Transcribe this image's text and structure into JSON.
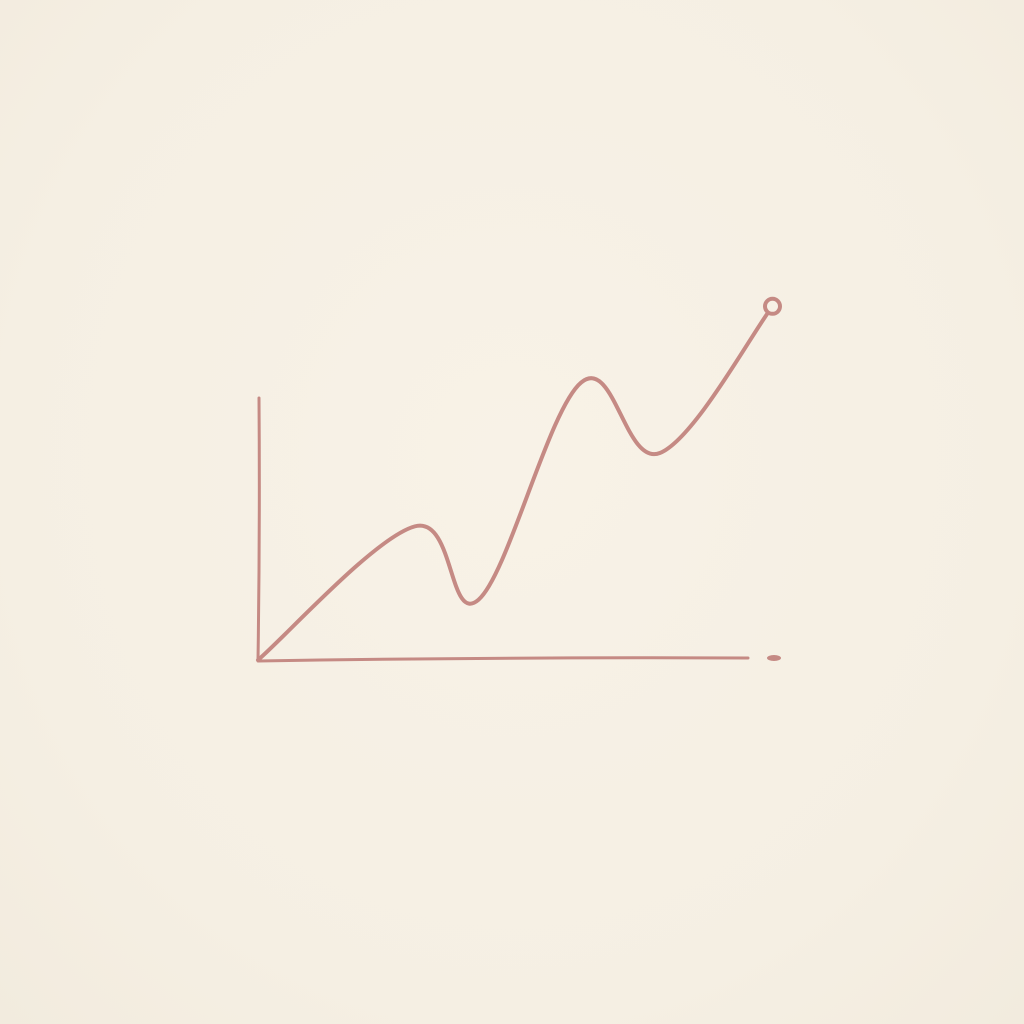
{
  "chart_data": {
    "type": "line",
    "title": "",
    "xlabel": "",
    "ylabel": "",
    "grid": false,
    "legend": "none",
    "xlim": [
      0,
      10
    ],
    "ylim": [
      0,
      10
    ],
    "series": [
      {
        "x": [
          0,
          3.2,
          4.5,
          6.6,
          8.2,
          10.5
        ],
        "y": [
          0,
          5.1,
          2.3,
          10.6,
          7.9,
          13.5
        ],
        "color": "#c58a84"
      }
    ],
    "end_marker": "circle",
    "axis_color": "#c58a84"
  }
}
